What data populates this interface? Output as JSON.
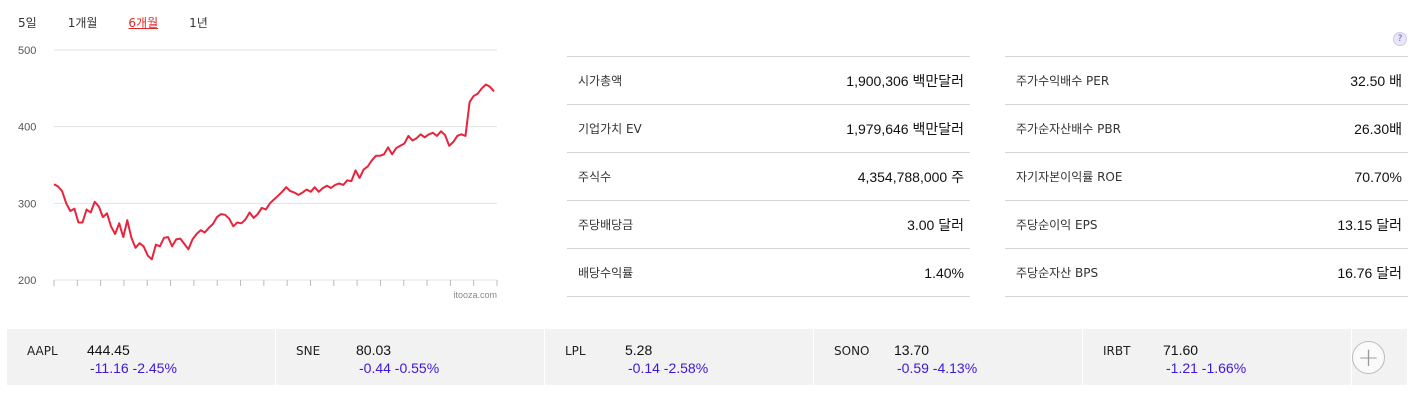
{
  "range_tabs": [
    {
      "label": "5일",
      "active": false
    },
    {
      "label": "1개월",
      "active": false
    },
    {
      "label": "6개월",
      "active": true
    },
    {
      "label": "1년",
      "active": false
    }
  ],
  "chart_data": {
    "type": "line",
    "y_ticks": [
      "500",
      "400",
      "300",
      "200"
    ],
    "ylim": [
      200,
      500
    ],
    "source_label": "itooza.com",
    "color": "#e8243c",
    "values": [
      325,
      322,
      316,
      300,
      290,
      293,
      275,
      275,
      292,
      288,
      302,
      296,
      282,
      287,
      270,
      260,
      274,
      256,
      278,
      255,
      242,
      248,
      244,
      232,
      227,
      246,
      244,
      255,
      256,
      244,
      253,
      254,
      247,
      240,
      253,
      260,
      265,
      262,
      268,
      273,
      282,
      286,
      285,
      280,
      270,
      275,
      274,
      279,
      288,
      281,
      286,
      294,
      292,
      300,
      305,
      310,
      315,
      321,
      316,
      314,
      311,
      314,
      318,
      315,
      321,
      315,
      320,
      323,
      320,
      324,
      326,
      324,
      330,
      329,
      343,
      333,
      344,
      348,
      356,
      362,
      362,
      364,
      373,
      364,
      372,
      375,
      378,
      388,
      382,
      385,
      390,
      386,
      390,
      392,
      388,
      394,
      389,
      375,
      380,
      388,
      390,
      388,
      432,
      440,
      443,
      450,
      455,
      452,
      446
    ]
  },
  "stats_left": [
    {
      "label": "시가총액",
      "value": "1,900,306 백만달러"
    },
    {
      "label": "기업가치 EV",
      "value": "1,979,646 백만달러"
    },
    {
      "label": "주식수",
      "value": "4,354,788,000 주"
    },
    {
      "label": "주당배당금",
      "value": "3.00 달러"
    },
    {
      "label": "배당수익률",
      "value": "1.40%"
    }
  ],
  "stats_right": [
    {
      "label": "주가수익배수 PER",
      "value": "32.50 배"
    },
    {
      "label": "주가순자산배수 PBR",
      "value": "26.30배"
    },
    {
      "label": "자기자본이익률 ROE",
      "value": "70.70%"
    },
    {
      "label": "주당순이익 EPS",
      "value": "13.15 달러"
    },
    {
      "label": "주당순자산 BPS",
      "value": "16.76 달러"
    }
  ],
  "help_icon": {
    "icon": "question-icon",
    "label": "?"
  },
  "tickers": [
    {
      "symbol": "AAPL",
      "price": "444.45",
      "change": "-11.16 -2.45%"
    },
    {
      "symbol": "SNE",
      "price": "80.03",
      "change": "-0.44 -0.55%"
    },
    {
      "symbol": "LPL",
      "price": "5.28",
      "change": "-0.14 -2.58%"
    },
    {
      "symbol": "SONO",
      "price": "13.70",
      "change": "-0.59 -4.13%"
    },
    {
      "symbol": "IRBT",
      "price": "71.60",
      "change": "-1.21 -1.66%"
    }
  ],
  "add_button": {
    "icon": "plus-icon",
    "label": "+"
  }
}
